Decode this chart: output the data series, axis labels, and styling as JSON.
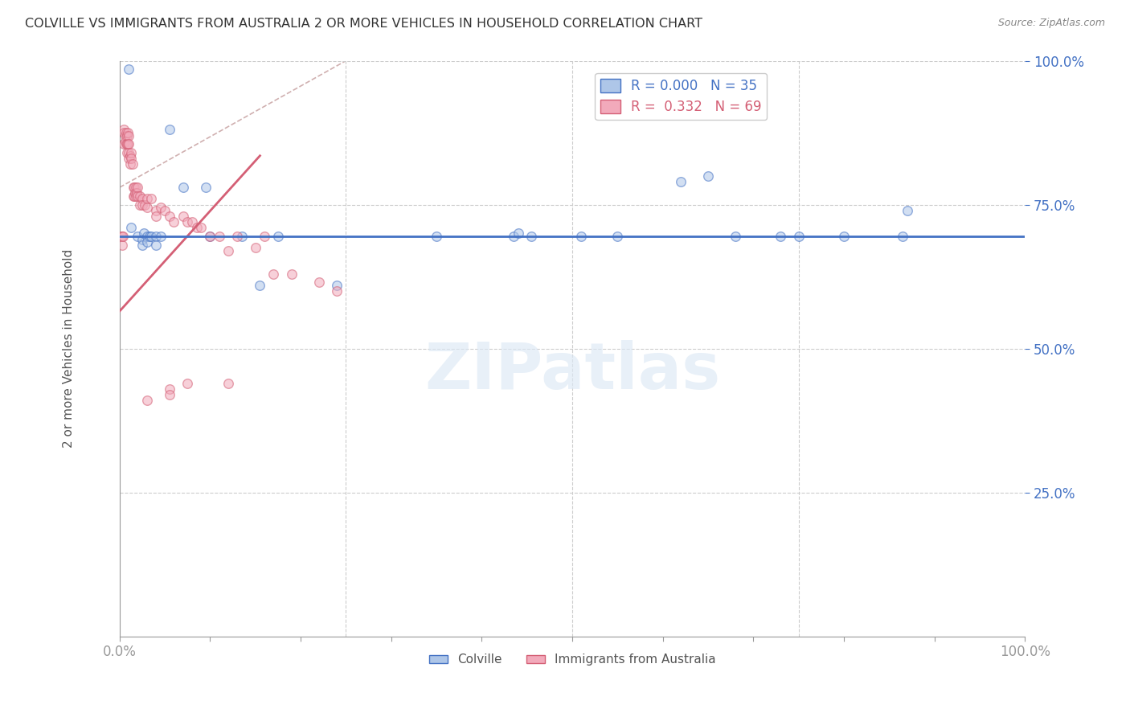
{
  "title": "COLVILLE VS IMMIGRANTS FROM AUSTRALIA 2 OR MORE VEHICLES IN HOUSEHOLD CORRELATION CHART",
  "source": "Source: ZipAtlas.com",
  "ylabel": "2 or more Vehicles in Household",
  "xlabel_bottom_left": "0.0%",
  "xlabel_bottom_right": "100.0%",
  "legend_blue_r": "R = 0.000",
  "legend_blue_n": "N = 35",
  "legend_pink_r": "R =  0.332",
  "legend_pink_n": "N = 69",
  "legend_bottom_blue": "Colville",
  "legend_bottom_pink": "Immigrants from Australia",
  "blue_fill": "#aec6e8",
  "pink_fill": "#f2aabb",
  "blue_edge": "#4472c4",
  "pink_edge": "#d45f75",
  "diag_line_color": "#d0b0b0",
  "blue_line_color": "#4472c4",
  "pink_line_color": "#d45f75",
  "r_text_color": "#4472c4",
  "ylim": [
    0.0,
    1.0
  ],
  "xlim": [
    0.0,
    1.0
  ],
  "ytick_vals": [
    0.25,
    0.5,
    0.75,
    1.0
  ],
  "ytick_labels": [
    "25.0%",
    "50.0%",
    "75.0%",
    "100.0%"
  ],
  "blue_hline_y": 0.695,
  "blue_scatter_x": [
    0.01,
    0.013,
    0.02,
    0.025,
    0.025,
    0.027,
    0.03,
    0.03,
    0.033,
    0.035,
    0.04,
    0.04,
    0.045,
    0.055,
    0.07,
    0.095,
    0.1,
    0.135,
    0.155,
    0.175,
    0.24,
    0.35,
    0.435,
    0.44,
    0.455,
    0.51,
    0.55,
    0.62,
    0.65,
    0.68,
    0.73,
    0.75,
    0.8,
    0.865,
    0.87
  ],
  "blue_scatter_y": [
    0.985,
    0.71,
    0.695,
    0.69,
    0.68,
    0.7,
    0.695,
    0.685,
    0.695,
    0.695,
    0.695,
    0.68,
    0.695,
    0.88,
    0.78,
    0.78,
    0.695,
    0.695,
    0.61,
    0.695,
    0.61,
    0.695,
    0.695,
    0.7,
    0.695,
    0.695,
    0.695,
    0.79,
    0.8,
    0.695,
    0.695,
    0.695,
    0.695,
    0.695,
    0.74
  ],
  "pink_scatter_x": [
    0.002,
    0.003,
    0.003,
    0.004,
    0.005,
    0.005,
    0.005,
    0.006,
    0.006,
    0.007,
    0.007,
    0.008,
    0.008,
    0.008,
    0.009,
    0.009,
    0.01,
    0.01,
    0.01,
    0.01,
    0.012,
    0.012,
    0.013,
    0.013,
    0.014,
    0.015,
    0.015,
    0.016,
    0.016,
    0.017,
    0.018,
    0.018,
    0.019,
    0.02,
    0.02,
    0.022,
    0.022,
    0.025,
    0.025,
    0.028,
    0.03,
    0.03,
    0.035,
    0.04,
    0.04,
    0.045,
    0.05,
    0.055,
    0.06,
    0.07,
    0.075,
    0.08,
    0.085,
    0.09,
    0.1,
    0.11,
    0.12,
    0.13,
    0.15,
    0.16,
    0.17,
    0.19,
    0.22,
    0.24,
    0.075,
    0.055,
    0.12,
    0.055,
    0.03
  ],
  "pink_scatter_y": [
    0.695,
    0.695,
    0.68,
    0.695,
    0.88,
    0.875,
    0.855,
    0.87,
    0.86,
    0.875,
    0.855,
    0.87,
    0.855,
    0.84,
    0.875,
    0.855,
    0.87,
    0.855,
    0.84,
    0.83,
    0.835,
    0.82,
    0.84,
    0.83,
    0.82,
    0.78,
    0.765,
    0.78,
    0.765,
    0.77,
    0.78,
    0.765,
    0.77,
    0.78,
    0.765,
    0.765,
    0.75,
    0.76,
    0.75,
    0.75,
    0.76,
    0.745,
    0.76,
    0.74,
    0.73,
    0.745,
    0.74,
    0.73,
    0.72,
    0.73,
    0.72,
    0.72,
    0.71,
    0.71,
    0.695,
    0.695,
    0.67,
    0.695,
    0.675,
    0.695,
    0.63,
    0.63,
    0.615,
    0.6,
    0.44,
    0.43,
    0.44,
    0.42,
    0.41
  ],
  "pink_trendline": [
    0.0,
    0.565,
    0.155,
    0.835
  ],
  "diag_trendline": [
    0.0,
    0.78,
    0.25,
    1.0
  ],
  "marker_size": 70,
  "marker_alpha": 0.55,
  "figsize": [
    14.06,
    8.92
  ],
  "dpi": 100
}
